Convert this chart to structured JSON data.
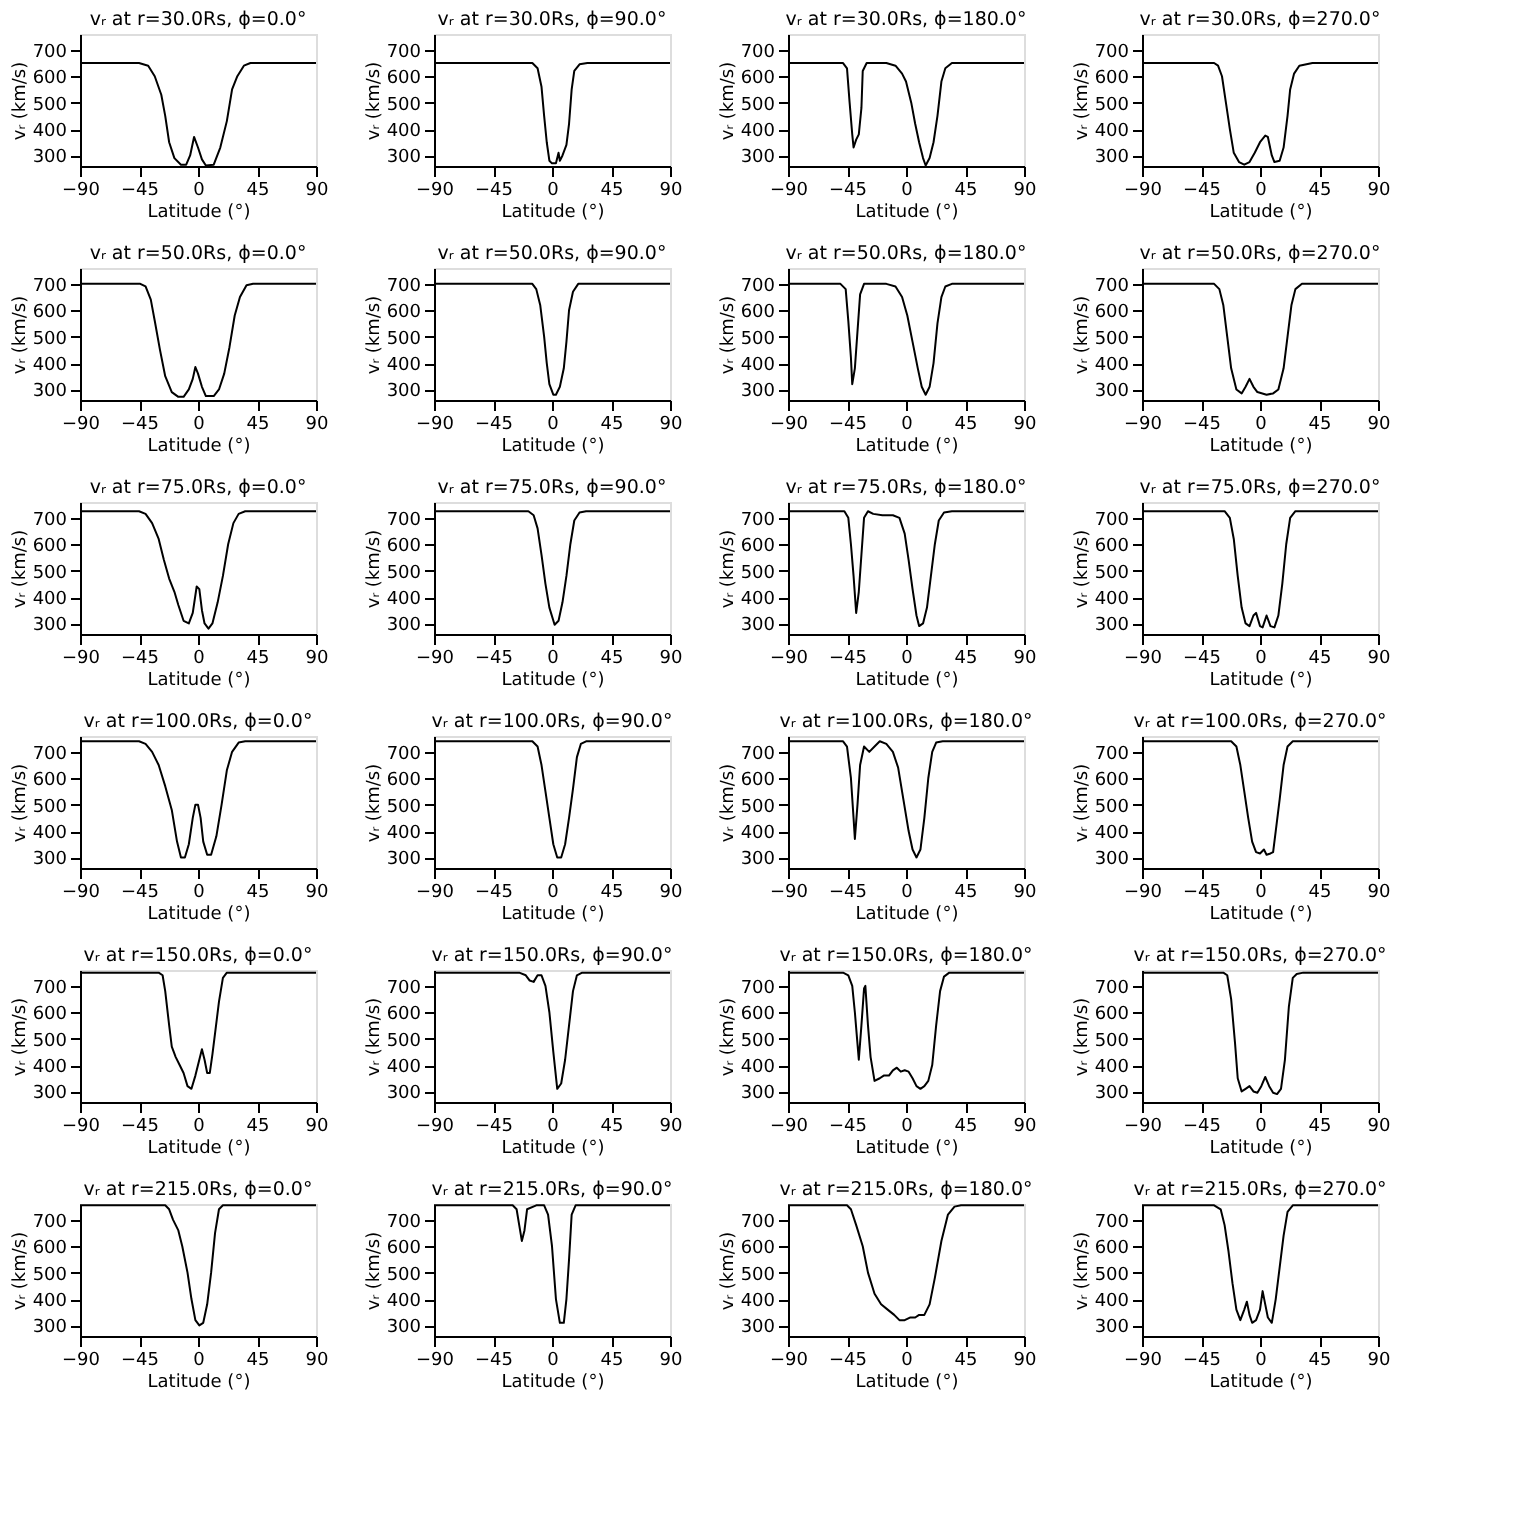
{
  "chart_data": [
    {
      "type": "line",
      "title": "vᵣ at r=30.0Rs, ϕ=0.0°",
      "xlabel": "Latitude (°)",
      "ylabel": "vᵣ (km/s)",
      "xlim": [
        -90,
        90
      ],
      "xticks": [
        -90,
        -45,
        0,
        45,
        90
      ],
      "ylim": [
        260,
        760
      ],
      "yticks": [
        300,
        400,
        500,
        600,
        700
      ],
      "grid": false,
      "series": [
        {
          "color": "#000000",
          "x": [
            -90,
            -45,
            -38,
            -33,
            -28,
            -25,
            -22,
            -18,
            -13,
            -9,
            -6,
            -3,
            0,
            3,
            6,
            12,
            17,
            22,
            26,
            30,
            35,
            40,
            90
          ],
          "values": [
            650,
            650,
            640,
            600,
            530,
            450,
            350,
            290,
            265,
            265,
            300,
            370,
            330,
            285,
            262,
            265,
            330,
            430,
            550,
            600,
            640,
            650,
            650
          ]
        }
      ]
    },
    {
      "type": "line",
      "title": "vᵣ at r=30.0Rs, ϕ=90.0°",
      "xlabel": "Latitude (°)",
      "ylabel": "vᵣ (km/s)",
      "xlim": [
        -90,
        90
      ],
      "xticks": [
        -90,
        -45,
        0,
        45,
        90
      ],
      "ylim": [
        260,
        760
      ],
      "yticks": [
        300,
        400,
        500,
        600,
        700
      ],
      "grid": false,
      "series": [
        {
          "color": "#000000",
          "x": [
            -90,
            -15,
            -11,
            -8,
            -6,
            -4,
            -2,
            0,
            3,
            5,
            6,
            8,
            11,
            13,
            15,
            17,
            21,
            27,
            90
          ],
          "values": [
            650,
            650,
            630,
            560,
            450,
            350,
            280,
            270,
            270,
            310,
            280,
            300,
            340,
            420,
            550,
            620,
            645,
            650,
            650
          ]
        }
      ]
    },
    {
      "type": "line",
      "title": "vᵣ at r=30.0Rs, ϕ=180.0°",
      "xlabel": "Latitude (°)",
      "ylabel": "vᵣ (km/s)",
      "xlim": [
        -90,
        90
      ],
      "xticks": [
        -90,
        -45,
        0,
        45,
        90
      ],
      "ylim": [
        260,
        760
      ],
      "yticks": [
        300,
        400,
        500,
        600,
        700
      ],
      "grid": false,
      "series": [
        {
          "color": "#000000",
          "x": [
            -90,
            -48,
            -45,
            -43,
            -41,
            -40,
            -38,
            -36,
            -34,
            -33,
            -30,
            -15,
            -8,
            -3,
            0,
            4,
            7,
            10,
            13,
            15,
            18,
            21,
            24,
            27,
            30,
            35,
            90
          ],
          "values": [
            650,
            650,
            630,
            500,
            380,
            330,
            360,
            380,
            480,
            620,
            650,
            650,
            640,
            610,
            580,
            500,
            420,
            350,
            290,
            262,
            290,
            350,
            450,
            580,
            630,
            650,
            650
          ]
        }
      ]
    },
    {
      "type": "line",
      "title": "vᵣ at r=30.0Rs, ϕ=270.0°",
      "xlabel": "Latitude (°)",
      "ylabel": "vᵣ (km/s)",
      "xlim": [
        -90,
        90
      ],
      "xticks": [
        -90,
        -45,
        0,
        45,
        90
      ],
      "ylim": [
        260,
        760
      ],
      "yticks": [
        300,
        400,
        500,
        600,
        700
      ],
      "grid": false,
      "series": [
        {
          "color": "#000000",
          "x": [
            -90,
            -35,
            -32,
            -29,
            -26,
            -23,
            -20,
            -16,
            -12,
            -8,
            -4,
            0,
            4,
            6,
            9,
            11,
            15,
            18,
            21,
            23,
            26,
            30,
            40,
            90
          ],
          "values": [
            650,
            650,
            640,
            600,
            500,
            400,
            310,
            275,
            265,
            275,
            310,
            350,
            375,
            370,
            300,
            275,
            280,
            330,
            450,
            550,
            610,
            640,
            650,
            650
          ]
        }
      ]
    },
    {
      "type": "line",
      "title": "vᵣ at r=50.0Rs, ϕ=0.0°",
      "xlabel": "Latitude (°)",
      "ylabel": "vᵣ (km/s)",
      "xlim": [
        -90,
        90
      ],
      "xticks": [
        -90,
        -45,
        0,
        45,
        90
      ],
      "ylim": [
        260,
        760
      ],
      "yticks": [
        300,
        400,
        500,
        600,
        700
      ],
      "grid": false,
      "series": [
        {
          "color": "#000000",
          "x": [
            -90,
            -44,
            -40,
            -36,
            -33,
            -29,
            -25,
            -20,
            -15,
            -11,
            -7,
            -4,
            -2,
            0,
            3,
            6,
            12,
            16,
            20,
            24,
            28,
            32,
            37,
            42,
            90
          ],
          "values": [
            700,
            700,
            690,
            640,
            560,
            450,
            350,
            290,
            272,
            272,
            300,
            340,
            385,
            360,
            310,
            275,
            275,
            300,
            360,
            460,
            580,
            650,
            695,
            700,
            700
          ]
        }
      ]
    },
    {
      "type": "line",
      "title": "vᵣ at r=50.0Rs, ϕ=90.0°",
      "xlabel": "Latitude (°)",
      "ylabel": "vᵣ (km/s)",
      "xlim": [
        -90,
        90
      ],
      "xticks": [
        -90,
        -45,
        0,
        45,
        90
      ],
      "ylim": [
        260,
        760
      ],
      "yticks": [
        300,
        400,
        500,
        600,
        700
      ],
      "grid": false,
      "series": [
        {
          "color": "#000000",
          "x": [
            -90,
            -15,
            -12,
            -9,
            -6,
            -4,
            -2,
            1,
            3,
            6,
            9,
            11,
            13,
            16,
            20,
            90
          ],
          "values": [
            700,
            700,
            680,
            620,
            500,
            400,
            320,
            280,
            280,
            310,
            380,
            480,
            600,
            670,
            700,
            700
          ]
        }
      ]
    },
    {
      "type": "line",
      "title": "vᵣ at r=50.0Rs, ϕ=180.0°",
      "xlabel": "Latitude (°)",
      "ylabel": "vᵣ (km/s)",
      "xlim": [
        -90,
        90
      ],
      "xticks": [
        -90,
        -45,
        0,
        45,
        90
      ],
      "ylim": [
        260,
        760
      ],
      "yticks": [
        300,
        400,
        500,
        600,
        700
      ],
      "grid": false,
      "series": [
        {
          "color": "#000000",
          "x": [
            -90,
            -50,
            -46,
            -44,
            -42,
            -41,
            -39,
            -37,
            -35,
            -32,
            -15,
            -8,
            -3,
            1,
            5,
            9,
            12,
            15,
            18,
            21,
            24,
            27,
            30,
            35,
            90
          ],
          "values": [
            700,
            700,
            680,
            560,
            420,
            320,
            380,
            520,
            660,
            700,
            700,
            690,
            650,
            580,
            480,
            380,
            310,
            280,
            310,
            400,
            550,
            650,
            690,
            700,
            700
          ]
        }
      ]
    },
    {
      "type": "line",
      "title": "vᵣ at r=50.0Rs, ϕ=270.0°",
      "xlabel": "Latitude (°)",
      "ylabel": "vᵣ (km/s)",
      "xlim": [
        -90,
        90
      ],
      "xticks": [
        -90,
        -45,
        0,
        45,
        90
      ],
      "ylim": [
        260,
        760
      ],
      "yticks": [
        300,
        400,
        500,
        600,
        700
      ],
      "grid": false,
      "series": [
        {
          "color": "#000000",
          "x": [
            -90,
            -35,
            -31,
            -28,
            -25,
            -22,
            -18,
            -14,
            -11,
            -8,
            -5,
            -2,
            5,
            10,
            14,
            18,
            21,
            24,
            27,
            32,
            90
          ],
          "values": [
            700,
            700,
            680,
            620,
            500,
            380,
            300,
            285,
            310,
            340,
            310,
            290,
            280,
            285,
            300,
            380,
            500,
            620,
            680,
            700,
            700
          ]
        }
      ]
    },
    {
      "type": "line",
      "title": "vᵣ at r=75.0Rs, ϕ=0.0°",
      "xlabel": "Latitude (°)",
      "ylabel": "vᵣ (km/s)",
      "xlim": [
        -90,
        90
      ],
      "xticks": [
        -90,
        -45,
        0,
        45,
        90
      ],
      "ylim": [
        260,
        760
      ],
      "yticks": [
        300,
        400,
        500,
        600,
        700
      ],
      "grid": false,
      "series": [
        {
          "color": "#000000",
          "x": [
            -90,
            -45,
            -40,
            -35,
            -30,
            -26,
            -22,
            -18,
            -15,
            -11,
            -7,
            -4,
            -1,
            1,
            3,
            5,
            8,
            11,
            15,
            19,
            23,
            27,
            31,
            36,
            90
          ],
          "values": [
            725,
            725,
            715,
            680,
            620,
            540,
            470,
            420,
            370,
            310,
            300,
            340,
            440,
            430,
            350,
            300,
            280,
            300,
            380,
            480,
            600,
            680,
            715,
            725,
            725
          ]
        }
      ]
    },
    {
      "type": "line",
      "title": "vᵣ at r=75.0Rs, ϕ=90.0°",
      "xlabel": "Latitude (°)",
      "ylabel": "vᵣ (km/s)",
      "xlim": [
        -90,
        90
      ],
      "xticks": [
        -90,
        -45,
        0,
        45,
        90
      ],
      "ylim": [
        260,
        760
      ],
      "yticks": [
        300,
        400,
        500,
        600,
        700
      ],
      "grid": false,
      "series": [
        {
          "color": "#000000",
          "x": [
            -90,
            -18,
            -14,
            -11,
            -8,
            -5,
            -2,
            2,
            5,
            8,
            11,
            14,
            17,
            21,
            26,
            90
          ],
          "values": [
            725,
            725,
            710,
            660,
            560,
            450,
            360,
            295,
            310,
            380,
            480,
            600,
            690,
            720,
            725,
            725
          ]
        }
      ]
    },
    {
      "type": "line",
      "title": "vᵣ at r=75.0Rs, ϕ=180.0°",
      "xlabel": "Latitude (°)",
      "ylabel": "vᵣ (km/s)",
      "xlim": [
        -90,
        90
      ],
      "xticks": [
        -90,
        -45,
        0,
        45,
        90
      ],
      "ylim": [
        260,
        760
      ],
      "yticks": [
        300,
        400,
        500,
        600,
        700
      ],
      "grid": false,
      "series": [
        {
          "color": "#000000",
          "x": [
            -90,
            -47,
            -44,
            -42,
            -40,
            -38,
            -36,
            -34,
            -32,
            -29,
            -25,
            -18,
            -10,
            -5,
            -1,
            2,
            5,
            8,
            10,
            13,
            16,
            19,
            22,
            25,
            29,
            35,
            90
          ],
          "values": [
            725,
            725,
            700,
            600,
            480,
            340,
            420,
            560,
            700,
            725,
            715,
            710,
            710,
            700,
            640,
            540,
            430,
            330,
            290,
            300,
            360,
            480,
            600,
            690,
            720,
            725,
            725
          ]
        }
      ]
    },
    {
      "type": "line",
      "title": "vᵣ at r=75.0Rs, ϕ=270.0°",
      "xlabel": "Latitude (°)",
      "ylabel": "vᵣ (km/s)",
      "xlim": [
        -90,
        90
      ],
      "xticks": [
        -90,
        -45,
        0,
        45,
        90
      ],
      "ylim": [
        260,
        760
      ],
      "yticks": [
        300,
        400,
        500,
        600,
        700
      ],
      "grid": false,
      "series": [
        {
          "color": "#000000",
          "x": [
            -90,
            -27,
            -23,
            -20,
            -17,
            -14,
            -11,
            -8,
            -5,
            -3,
            0,
            2,
            5,
            8,
            11,
            14,
            17,
            20,
            23,
            27,
            90
          ],
          "values": [
            725,
            725,
            700,
            620,
            480,
            360,
            300,
            290,
            330,
            340,
            290,
            285,
            330,
            290,
            285,
            330,
            450,
            600,
            700,
            725,
            725
          ]
        }
      ]
    },
    {
      "type": "line",
      "title": "vᵣ at r=100.0Rs, ϕ=0.0°",
      "xlabel": "Latitude (°)",
      "ylabel": "vᵣ (km/s)",
      "xlim": [
        -90,
        90
      ],
      "xticks": [
        -90,
        -45,
        0,
        45,
        90
      ],
      "ylim": [
        260,
        760
      ],
      "yticks": [
        300,
        400,
        500,
        600,
        700
      ],
      "grid": false,
      "series": [
        {
          "color": "#000000",
          "x": [
            -90,
            -45,
            -40,
            -35,
            -30,
            -25,
            -20,
            -16,
            -13,
            -10,
            -7,
            -4,
            -2,
            0,
            2,
            4,
            7,
            10,
            14,
            18,
            22,
            26,
            31,
            36,
            90
          ],
          "values": [
            740,
            740,
            730,
            700,
            650,
            570,
            480,
            360,
            300,
            300,
            350,
            450,
            500,
            500,
            450,
            360,
            310,
            310,
            380,
            500,
            630,
            700,
            735,
            740,
            740
          ]
        }
      ]
    },
    {
      "type": "line",
      "title": "vᵣ at r=100.0Rs, ϕ=90.0°",
      "xlabel": "Latitude (°)",
      "ylabel": "vᵣ (km/s)",
      "xlim": [
        -90,
        90
      ],
      "xticks": [
        -90,
        -45,
        0,
        45,
        90
      ],
      "ylim": [
        260,
        760
      ],
      "yticks": [
        300,
        400,
        500,
        600,
        700
      ],
      "grid": false,
      "series": [
        {
          "color": "#000000",
          "x": [
            -90,
            -15,
            -11,
            -8,
            -5,
            -2,
            1,
            4,
            7,
            10,
            13,
            16,
            19,
            22,
            26,
            90
          ],
          "values": [
            740,
            740,
            720,
            650,
            550,
            450,
            350,
            300,
            300,
            350,
            450,
            560,
            680,
            730,
            740,
            740
          ]
        }
      ]
    },
    {
      "type": "line",
      "title": "vᵣ at r=100.0Rs, ϕ=180.0°",
      "xlabel": "Latitude (°)",
      "ylabel": "vᵣ (km/s)",
      "xlim": [
        -90,
        90
      ],
      "xticks": [
        -90,
        -45,
        0,
        45,
        90
      ],
      "ylim": [
        260,
        760
      ],
      "yticks": [
        300,
        400,
        500,
        600,
        700
      ],
      "grid": false,
      "series": [
        {
          "color": "#000000",
          "x": [
            -90,
            -48,
            -45,
            -42,
            -40,
            -39,
            -37,
            -35,
            -32,
            -28,
            -24,
            -20,
            -15,
            -10,
            -6,
            -2,
            2,
            5,
            8,
            11,
            14,
            17,
            20,
            23,
            28,
            90
          ],
          "values": [
            740,
            740,
            720,
            600,
            450,
            370,
            500,
            650,
            720,
            700,
            720,
            740,
            730,
            700,
            640,
            520,
            400,
            330,
            300,
            330,
            450,
            600,
            700,
            735,
            740,
            740
          ]
        }
      ]
    },
    {
      "type": "line",
      "title": "vᵣ at r=100.0Rs, ϕ=270.0°",
      "xlabel": "Latitude (°)",
      "ylabel": "vᵣ (km/s)",
      "xlim": [
        -90,
        90
      ],
      "xticks": [
        -90,
        -45,
        0,
        45,
        90
      ],
      "ylim": [
        260,
        760
      ],
      "yticks": [
        300,
        400,
        500,
        600,
        700
      ],
      "grid": false,
      "series": [
        {
          "color": "#000000",
          "x": [
            -90,
            -22,
            -18,
            -15,
            -12,
            -9,
            -6,
            -3,
            0,
            3,
            5,
            8,
            10,
            12,
            15,
            18,
            21,
            25,
            90
          ],
          "values": [
            740,
            740,
            720,
            650,
            550,
            450,
            360,
            320,
            315,
            330,
            310,
            315,
            320,
            400,
            520,
            650,
            720,
            740,
            740
          ]
        }
      ]
    },
    {
      "type": "line",
      "title": "vᵣ at r=150.0Rs, ϕ=0.0°",
      "xlabel": "Latitude (°)",
      "ylabel": "vᵣ (km/s)",
      "xlim": [
        -90,
        90
      ],
      "xticks": [
        -90,
        -45,
        0,
        45,
        90
      ],
      "ylim": [
        260,
        760
      ],
      "yticks": [
        300,
        400,
        500,
        600,
        700
      ],
      "grid": false,
      "series": [
        {
          "color": "#000000",
          "x": [
            -90,
            -30,
            -27,
            -25,
            -22,
            -20,
            -17,
            -14,
            -11,
            -8,
            -5,
            -2,
            1,
            3,
            5,
            7,
            9,
            11,
            13,
            16,
            19,
            22,
            90
          ],
          "values": [
            750,
            750,
            740,
            680,
            550,
            470,
            430,
            400,
            370,
            320,
            310,
            360,
            420,
            460,
            420,
            370,
            370,
            440,
            520,
            640,
            730,
            750,
            750
          ]
        }
      ]
    },
    {
      "type": "line",
      "title": "vᵣ at r=150.0Rs, ϕ=90.0°",
      "xlabel": "Latitude (°)",
      "ylabel": "vᵣ (km/s)",
      "xlim": [
        -90,
        90
      ],
      "xticks": [
        -90,
        -45,
        0,
        45,
        90
      ],
      "ylim": [
        260,
        760
      ],
      "yticks": [
        300,
        400,
        500,
        600,
        700
      ],
      "grid": false,
      "series": [
        {
          "color": "#000000",
          "x": [
            -90,
            -25,
            -20,
            -17,
            -14,
            -11,
            -8,
            -5,
            -2,
            1,
            4,
            7,
            10,
            13,
            16,
            19,
            23,
            90
          ],
          "values": [
            750,
            750,
            740,
            720,
            715,
            740,
            740,
            700,
            600,
            450,
            310,
            330,
            420,
            550,
            680,
            740,
            750,
            750
          ]
        }
      ]
    },
    {
      "type": "line",
      "title": "vᵣ at r=150.0Rs, ϕ=180.0°",
      "xlabel": "Latitude (°)",
      "ylabel": "vᵣ (km/s)",
      "xlim": [
        -90,
        90
      ],
      "xticks": [
        -90,
        -45,
        0,
        45,
        90
      ],
      "ylim": [
        260,
        760
      ],
      "yticks": [
        300,
        400,
        500,
        600,
        700
      ],
      "grid": false,
      "series": [
        {
          "color": "#000000",
          "x": [
            -90,
            -48,
            -44,
            -41,
            -39,
            -37,
            -36,
            -34,
            -32,
            -31,
            -29,
            -27,
            -24,
            -20,
            -17,
            -13,
            -10,
            -7,
            -4,
            -1,
            2,
            5,
            8,
            11,
            14,
            17,
            20,
            23,
            26,
            29,
            33,
            90
          ],
          "values": [
            750,
            750,
            740,
            700,
            600,
            480,
            420,
            550,
            690,
            700,
            550,
            430,
            340,
            350,
            360,
            360,
            380,
            390,
            375,
            380,
            375,
            350,
            320,
            310,
            320,
            340,
            400,
            550,
            680,
            735,
            750,
            750
          ]
        }
      ]
    },
    {
      "type": "line",
      "title": "vᵣ at r=150.0Rs, ϕ=270.0°",
      "xlabel": "Latitude (°)",
      "ylabel": "vᵣ (km/s)",
      "xlim": [
        -90,
        90
      ],
      "xticks": [
        -90,
        -45,
        0,
        45,
        90
      ],
      "ylim": [
        260,
        760
      ],
      "yticks": [
        300,
        400,
        500,
        600,
        700
      ],
      "grid": false,
      "series": [
        {
          "color": "#000000",
          "x": [
            -90,
            -28,
            -25,
            -22,
            -19,
            -17,
            -14,
            -11,
            -8,
            -5,
            -2,
            1,
            4,
            7,
            10,
            13,
            16,
            19,
            22,
            25,
            28,
            33,
            90
          ],
          "values": [
            750,
            750,
            740,
            650,
            480,
            350,
            300,
            310,
            320,
            300,
            295,
            320,
            355,
            320,
            295,
            290,
            310,
            420,
            620,
            730,
            745,
            750,
            750
          ]
        }
      ]
    },
    {
      "type": "line",
      "title": "vᵣ at r=215.0Rs, ϕ=0.0°",
      "xlabel": "Latitude (°)",
      "ylabel": "vᵣ (km/s)",
      "xlim": [
        -90,
        90
      ],
      "xticks": [
        -90,
        -45,
        0,
        45,
        90
      ],
      "ylim": [
        260,
        760
      ],
      "yticks": [
        300,
        400,
        500,
        600,
        700
      ],
      "grid": false,
      "series": [
        {
          "color": "#000000",
          "x": [
            -90,
            -25,
            -22,
            -19,
            -15,
            -12,
            -8,
            -5,
            -2,
            1,
            4,
            7,
            10,
            13,
            16,
            19,
            90
          ],
          "values": [
            755,
            755,
            740,
            700,
            660,
            600,
            500,
            400,
            320,
            300,
            310,
            380,
            500,
            650,
            740,
            755,
            755
          ]
        }
      ]
    },
    {
      "type": "line",
      "title": "vᵣ at r=215.0Rs, ϕ=90.0°",
      "xlabel": "Latitude (°)",
      "ylabel": "vᵣ (km/s)",
      "xlim": [
        -90,
        90
      ],
      "xticks": [
        -90,
        -45,
        0,
        45,
        90
      ],
      "ylim": [
        260,
        760
      ],
      "yticks": [
        300,
        400,
        500,
        600,
        700
      ],
      "grid": false,
      "series": [
        {
          "color": "#000000",
          "x": [
            -90,
            -30,
            -27,
            -25,
            -23,
            -21,
            -19,
            -12,
            -6,
            -3,
            0,
            3,
            6,
            9,
            11,
            13,
            15,
            18,
            90
          ],
          "values": [
            755,
            755,
            740,
            680,
            620,
            660,
            740,
            755,
            755,
            720,
            600,
            400,
            310,
            310,
            400,
            550,
            720,
            755,
            755
          ]
        }
      ]
    },
    {
      "type": "line",
      "title": "vᵣ at r=215.0Rs, ϕ=180.0°",
      "xlabel": "Latitude (°)",
      "ylabel": "vᵣ (km/s)",
      "xlim": [
        -90,
        90
      ],
      "xticks": [
        -90,
        -45,
        0,
        45,
        90
      ],
      "ylim": [
        260,
        760
      ],
      "yticks": [
        300,
        400,
        500,
        600,
        700
      ],
      "grid": false,
      "series": [
        {
          "color": "#000000",
          "x": [
            -90,
            -45,
            -42,
            -38,
            -33,
            -29,
            -24,
            -19,
            -14,
            -9,
            -5,
            -1,
            3,
            7,
            10,
            14,
            18,
            22,
            27,
            32,
            37,
            42,
            90
          ],
          "values": [
            755,
            755,
            740,
            680,
            600,
            500,
            420,
            380,
            360,
            340,
            320,
            320,
            330,
            330,
            340,
            340,
            380,
            480,
            620,
            720,
            750,
            755,
            755
          ]
        }
      ]
    },
    {
      "type": "line",
      "title": "vᵣ at r=215.0Rs, ϕ=270.0°",
      "xlabel": "Latitude (°)",
      "ylabel": "vᵣ (km/s)",
      "xlim": [
        -90,
        90
      ],
      "xticks": [
        -90,
        -45,
        0,
        45,
        90
      ],
      "ylim": [
        260,
        760
      ],
      "yticks": [
        300,
        400,
        500,
        600,
        700
      ],
      "grid": false,
      "series": [
        {
          "color": "#000000",
          "x": [
            -90,
            -35,
            -30,
            -27,
            -24,
            -21,
            -18,
            -15,
            -12,
            -10,
            -8,
            -6,
            -3,
            0,
            2,
            4,
            6,
            9,
            12,
            15,
            18,
            21,
            25,
            90
          ],
          "values": [
            755,
            755,
            740,
            680,
            580,
            460,
            360,
            320,
            360,
            390,
            340,
            310,
            320,
            360,
            430,
            380,
            330,
            310,
            400,
            520,
            640,
            730,
            755,
            755
          ]
        }
      ]
    }
  ]
}
